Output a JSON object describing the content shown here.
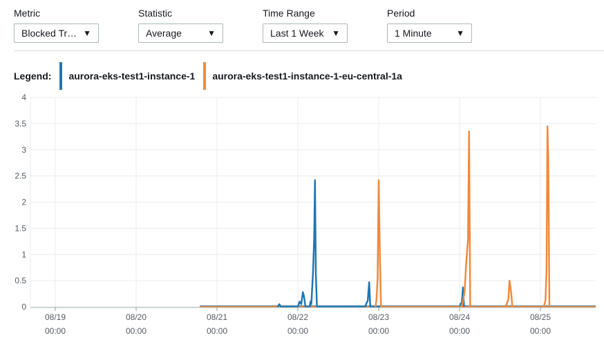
{
  "controls": {
    "metric": {
      "label": "Metric",
      "value": "Blocked Tr…"
    },
    "statistic": {
      "label": "Statistic",
      "value": "Average"
    },
    "time_range": {
      "label": "Time Range",
      "value": "Last 1 Week"
    },
    "period": {
      "label": "Period",
      "value": "1 Minute"
    }
  },
  "legend": {
    "label": "Legend:"
  },
  "chart_data": {
    "type": "line",
    "grid": true,
    "ylim": [
      0,
      4
    ],
    "yticks": [
      "0",
      "0.5",
      "1",
      "1.5",
      "2",
      "2.5",
      "3",
      "3.5",
      "4"
    ],
    "xticks": [
      {
        "date": "08/19",
        "time": "00:00"
      },
      {
        "date": "08/20",
        "time": "00:00"
      },
      {
        "date": "08/21",
        "time": "00:00"
      },
      {
        "date": "08/22",
        "time": "00:00"
      },
      {
        "date": "08/23",
        "time": "00:00"
      },
      {
        "date": "08/24",
        "time": "00:00"
      },
      {
        "date": "08/25",
        "time": "00:00"
      }
    ],
    "series": [
      {
        "name": "aurora-eks-test1-instance-1",
        "color": "#1f77b4",
        "points": [
          [
            "08/21 18:00",
            0.0
          ],
          [
            "08/21 18:30",
            0.05
          ],
          [
            "08/21 19:00",
            0.0
          ],
          [
            "08/22 00:00",
            0.0
          ],
          [
            "08/22 00:30",
            0.1
          ],
          [
            "08/22 01:00",
            0.05
          ],
          [
            "08/22 01:30",
            0.28
          ],
          [
            "08/22 01:50",
            0.2
          ],
          [
            "08/22 02:15",
            0.0
          ],
          [
            "08/22 03:30",
            0.0
          ],
          [
            "08/22 03:45",
            0.1
          ],
          [
            "08/22 04:00",
            0.05
          ],
          [
            "08/22 04:30",
            0.65
          ],
          [
            "08/22 04:50",
            1.3
          ],
          [
            "08/22 05:05",
            2.42
          ],
          [
            "08/22 05:20",
            0.65
          ],
          [
            "08/22 05:40",
            0.0
          ],
          [
            "08/22 20:00",
            0.0
          ],
          [
            "08/22 20:15",
            0.05
          ],
          [
            "08/22 20:45",
            0.12
          ],
          [
            "08/22 21:10",
            0.47
          ],
          [
            "08/22 21:30",
            0.0
          ],
          [
            "08/24 00:00",
            0.0
          ],
          [
            "08/24 00:15",
            0.05
          ],
          [
            "08/24 00:40",
            0.08
          ],
          [
            "08/24 01:00",
            0.37
          ],
          [
            "08/24 01:20",
            0.0
          ]
        ]
      },
      {
        "name": "aurora-eks-test1-instance-1-eu-central-1a",
        "color": "#f08a3c",
        "points": [
          [
            "08/22 23:00",
            0.0
          ],
          [
            "08/22 23:20",
            0.12
          ],
          [
            "08/22 23:40",
            0.55
          ],
          [
            "08/23 00:00",
            2.42
          ],
          [
            "08/23 00:20",
            1.05
          ],
          [
            "08/23 00:40",
            0.0
          ],
          [
            "08/24 00:40",
            0.0
          ],
          [
            "08/24 01:00",
            0.1
          ],
          [
            "08/24 01:30",
            0.3
          ],
          [
            "08/24 02:00",
            0.85
          ],
          [
            "08/24 02:30",
            1.28
          ],
          [
            "08/24 02:50",
            3.35
          ],
          [
            "08/24 03:10",
            0.0
          ],
          [
            "08/24 13:30",
            0.0
          ],
          [
            "08/24 14:00",
            0.05
          ],
          [
            "08/24 14:30",
            0.15
          ],
          [
            "08/24 14:50",
            0.5
          ],
          [
            "08/24 15:20",
            0.25
          ],
          [
            "08/24 15:40",
            0.0
          ],
          [
            "08/25 01:00",
            0.0
          ],
          [
            "08/25 01:30",
            0.12
          ],
          [
            "08/25 01:50",
            0.72
          ],
          [
            "08/25 02:05",
            3.45
          ],
          [
            "08/25 02:20",
            2.8
          ],
          [
            "08/25 02:40",
            0.0
          ]
        ]
      }
    ]
  }
}
